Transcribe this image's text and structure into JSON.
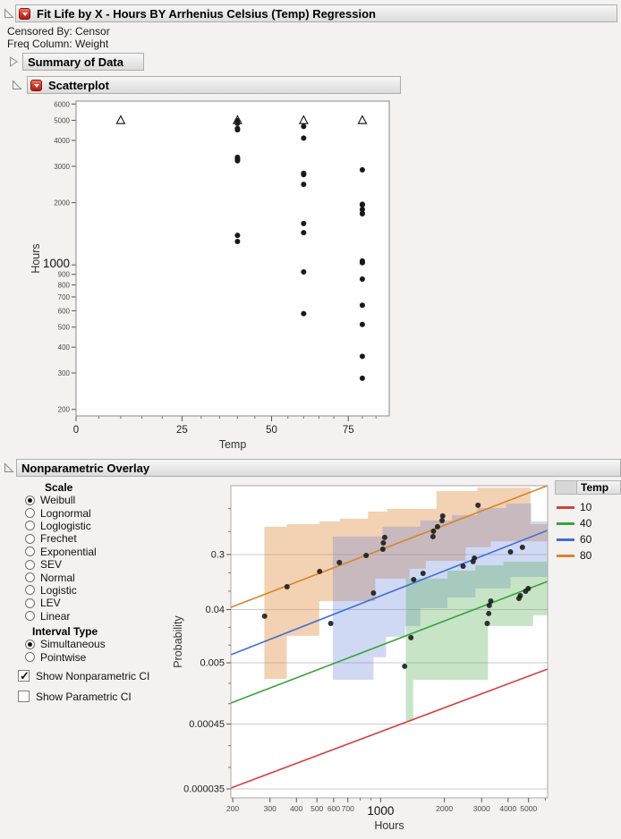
{
  "window": {
    "title": "Fit Life by X - Hours BY Arrhenius Celsius (Temp) Regression"
  },
  "info": {
    "censored_by": "Censored By: Censor",
    "freq_column": "Freq Column: Weight"
  },
  "sections": {
    "summary": {
      "label": "Summary of Data",
      "state": "collapsed"
    },
    "scatterplot": {
      "label": "Scatterplot",
      "state": "open"
    },
    "overlay": {
      "label": "Nonparametric Overlay",
      "state": "open"
    }
  },
  "controls": {
    "scale": {
      "heading": "Scale",
      "options": [
        "Weibull",
        "Lognormal",
        "Loglogistic",
        "Frechet",
        "Exponential",
        "SEV",
        "Normal",
        "Logistic",
        "LEV",
        "Linear"
      ],
      "selected": "Weibull"
    },
    "interval": {
      "heading": "Interval Type",
      "options": [
        "Simultaneous",
        "Pointwise"
      ],
      "selected": "Simultaneous"
    },
    "checkboxes": [
      {
        "label": "Show Nonparametric CI",
        "checked": true
      },
      {
        "label": "Show Parametric CI",
        "checked": false
      }
    ]
  },
  "legend": {
    "title": "Temp",
    "items": [
      {
        "label": "10",
        "color": "#D4413E"
      },
      {
        "label": "40",
        "color": "#3AA33A"
      },
      {
        "label": "60",
        "color": "#3F6FD6"
      },
      {
        "label": "80",
        "color": "#D88428"
      }
    ]
  },
  "chart_data": [
    {
      "id": "scatterplot",
      "type": "scatter",
      "xlabel": "Temp",
      "ylabel": "Hours",
      "x_scale": "arrhenius-celsius",
      "x_ticks": [
        0,
        25,
        50,
        75
      ],
      "x_minor_step": 5,
      "x_range": [
        0,
        90
      ],
      "y_scale": "log",
      "y_ticks": [
        200,
        300,
        400,
        500,
        600,
        700,
        800,
        900,
        1000,
        2000,
        3000,
        4000,
        5000,
        6000
      ],
      "y_major": [
        1000
      ],
      "y_range": [
        186,
        6200
      ],
      "marker_failure": "filled-circle",
      "marker_censored": "open-triangle",
      "series": [
        {
          "temp": 10,
          "failures": [],
          "censored": [
            5000
          ]
        },
        {
          "temp": 40,
          "failures": [
            1298,
            1390,
            3187,
            3241,
            3261,
            3313,
            4501,
            4568,
            4841,
            4982
          ],
          "censored": [
            5000
          ]
        },
        {
          "temp": 60,
          "failures": [
            581,
            925,
            1432,
            1586,
            2452,
            2734,
            2772,
            4106,
            4674
          ],
          "censored": [
            5000
          ]
        },
        {
          "temp": 80,
          "failures": [
            283,
            361,
            515,
            638,
            854,
            1024,
            1030,
            1045,
            1767,
            1777,
            1856,
            1951,
            1964,
            2884
          ],
          "censored": [
            5000
          ]
        }
      ]
    },
    {
      "id": "nonparametric-overlay",
      "type": "probability-plot",
      "xlabel": "Hours",
      "ylabel": "Probability",
      "x_scale": "log",
      "x_range": [
        196,
        6150
      ],
      "x_ticks": [
        200,
        300,
        400,
        500,
        600,
        700,
        800,
        900,
        1000,
        2000,
        3000,
        4000,
        5000,
        6000
      ],
      "x_labeled": [
        200,
        300,
        400,
        500,
        600,
        700,
        1000,
        2000,
        3000,
        4000,
        5000
      ],
      "x_major": [
        1000
      ],
      "y_scale": "weibull",
      "y_range": [
        2.46e-05,
        0.9953
      ],
      "y_ticks": [
        0.3,
        0.04,
        0.005,
        0.00045,
        3.5e-05
      ],
      "grid": "horizontal",
      "lines": [
        {
          "temp": 10,
          "color": "#D4413E",
          "p": [
            3.63e-05,
            0.00392
          ]
        },
        {
          "temp": 40,
          "color": "#3AA33A",
          "p": [
            0.001028,
            0.1166
          ]
        },
        {
          "temp": 60,
          "color": "#3F6FD6",
          "p": [
            0.00688,
            0.6028
          ]
        },
        {
          "temp": 80,
          "color": "#D88428",
          "p": [
            0.04366,
            0.9954
          ]
        }
      ],
      "bands": [
        {
          "temp": 80,
          "fill": "rgba(222,138,52,0.38)",
          "polygon": [
            [
              282,
              0.655
            ],
            [
              360,
              0.655
            ],
            [
              360,
              0.693
            ],
            [
              513,
              0.693
            ],
            [
              513,
              0.731
            ],
            [
              643,
              0.731
            ],
            [
              643,
              0.768
            ],
            [
              872,
              0.768
            ],
            [
              872,
              0.856
            ],
            [
              1072,
              0.856
            ],
            [
              1072,
              0.884
            ],
            [
              1838,
              0.884
            ],
            [
              1838,
              0.987
            ],
            [
              2860,
              0.987
            ],
            [
              2860,
              0.993
            ],
            [
              5100,
              0.993
            ],
            [
              5100,
              0.693
            ],
            [
              6150,
              0.693
            ],
            [
              6150,
              0.45
            ],
            [
              3313,
              0.45
            ],
            [
              3313,
              0.377
            ],
            [
              2518,
              0.377
            ],
            [
              2518,
              0.243
            ],
            [
              1634,
              0.243
            ],
            [
              1634,
              0.184
            ],
            [
              1370,
              0.184
            ],
            [
              1370,
              0.129
            ],
            [
              943,
              0.129
            ],
            [
              943,
              0.0555
            ],
            [
              513,
              0.0555
            ],
            [
              513,
              0.0144
            ],
            [
              360,
              0.0144
            ],
            [
              360,
              0.00266
            ],
            [
              282,
              0.00266
            ]
          ]
        },
        {
          "temp": 60,
          "fill": "rgba(100,130,220,0.30)",
          "polygon": [
            [
              594,
              0.514
            ],
            [
              1020,
              0.514
            ],
            [
              1020,
              0.655
            ],
            [
              1541,
              0.655
            ],
            [
              1541,
              0.744
            ],
            [
              2172,
              0.744
            ],
            [
              2172,
              0.814
            ],
            [
              2860,
              0.814
            ],
            [
              2860,
              0.892
            ],
            [
              3913,
              0.892
            ],
            [
              3913,
              0.93
            ],
            [
              5152,
              0.93
            ],
            [
              5152,
              0.73
            ],
            [
              6150,
              0.73
            ],
            [
              6150,
              0.137
            ],
            [
              4111,
              0.137
            ],
            [
              4111,
              0.0893
            ],
            [
              2804,
              0.0893
            ],
            [
              2804,
              0.0637
            ],
            [
              2068,
              0.0637
            ],
            [
              2068,
              0.0422
            ],
            [
              1541,
              0.0422
            ],
            [
              1541,
              0.0211
            ],
            [
              1304,
              0.0211
            ],
            [
              1304,
              0.0139
            ],
            [
              1061,
              0.0139
            ],
            [
              1061,
              0.0062
            ],
            [
              925,
              0.0062
            ],
            [
              925,
              0.00257
            ],
            [
              594,
              0.00257
            ]
          ]
        },
        {
          "temp": 40,
          "fill": "rgba(80,170,80,0.32)",
          "polygon": [
            [
              1316,
              0.129
            ],
            [
              2068,
              0.129
            ],
            [
              2068,
              0.172
            ],
            [
              2804,
              0.172
            ],
            [
              2804,
              0.208
            ],
            [
              3800,
              0.208
            ],
            [
              3800,
              0.236
            ],
            [
              6150,
              0.236
            ],
            [
              6150,
              0.032
            ],
            [
              5254,
              0.032
            ],
            [
              5254,
              0.0211
            ],
            [
              3217,
              0.0211
            ],
            [
              3217,
              0.00257
            ],
            [
              1425,
              0.00257
            ],
            [
              1425,
              0.00051
            ],
            [
              1316,
              0.00051
            ]
          ]
        }
      ],
      "points": [
        {
          "temp": 80,
          "data": [
            [
              283,
              0.031
            ],
            [
              361,
              0.0955
            ],
            [
              515,
              0.167
            ],
            [
              638,
              0.229
            ],
            [
              854,
              0.291
            ],
            [
              1024,
              0.356
            ],
            [
              1030,
              0.431
            ],
            [
              1045,
              0.502
            ],
            [
              1767,
              0.514
            ],
            [
              1777,
              0.59
            ],
            [
              1856,
              0.655
            ],
            [
              1951,
              0.743
            ],
            [
              1964,
              0.803
            ],
            [
              2884,
              0.916
            ]
          ]
        },
        {
          "temp": 60,
          "data": [
            [
              581,
              0.0234
            ],
            [
              925,
              0.0754
            ],
            [
              1432,
              0.1245
            ],
            [
              1586,
              0.1565
            ],
            [
              2452,
              0.202
            ],
            [
              2734,
              0.236
            ],
            [
              2772,
              0.266
            ],
            [
              4106,
              0.327
            ],
            [
              4674,
              0.377
            ]
          ]
        },
        {
          "temp": 40,
          "data": [
            [
              1298,
              0.00436
            ],
            [
              1390,
              0.0134
            ],
            [
              3187,
              0.0234
            ],
            [
              3241,
              0.0343
            ],
            [
              3261,
              0.0468
            ],
            [
              3313,
              0.0555
            ],
            [
              4501,
              0.0615
            ],
            [
              4568,
              0.0681
            ],
            [
              4841,
              0.0807
            ],
            [
              4982,
              0.0893
            ]
          ]
        }
      ]
    }
  ]
}
